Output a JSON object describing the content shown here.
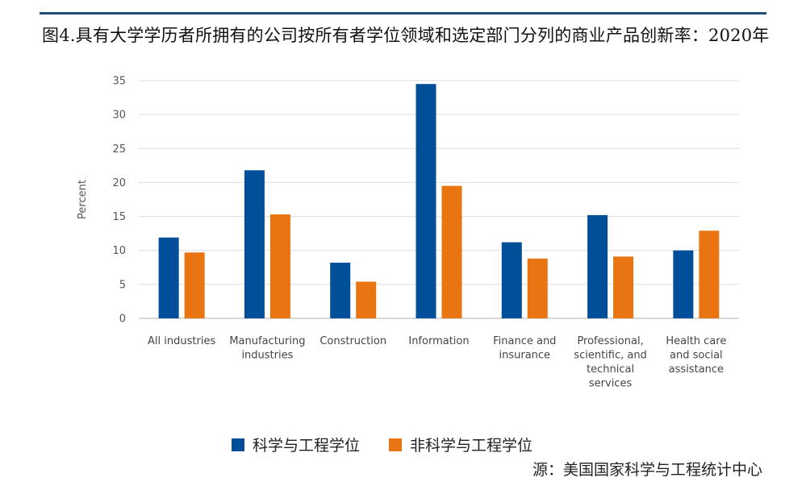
{
  "title": "图4.具有大学学历者所拥有的公司按所有者学位领域和选定部门分列的商业产品创新率：2020年",
  "source": "源：美国国家科学与工程统计中心",
  "colors": {
    "se": "#004f98",
    "non_se": "#e87511",
    "grid": "#dcdcdc",
    "axis": "#cccccc"
  },
  "chart_data": {
    "type": "bar",
    "ylabel": "Percent",
    "ylim": [
      0,
      35
    ],
    "yticks": [
      0,
      5,
      10,
      15,
      20,
      25,
      30,
      35
    ],
    "grid": true,
    "legend_position": "bottom",
    "categories": [
      [
        "All industries"
      ],
      [
        "Manufacturing",
        "industries"
      ],
      [
        "Construction"
      ],
      [
        "Information"
      ],
      [
        "Finance and",
        "insurance"
      ],
      [
        "Professional,",
        "scientific, and",
        "technical",
        "services"
      ],
      [
        "Health care",
        "and social",
        "assistance"
      ]
    ],
    "series": [
      {
        "name": "科学与工程学位",
        "color": "#004f98",
        "values": [
          11.9,
          21.8,
          8.2,
          34.5,
          11.2,
          15.2,
          10.0
        ]
      },
      {
        "name": "非科学与工程学位",
        "color": "#e87511",
        "values": [
          9.7,
          15.3,
          5.4,
          19.5,
          8.8,
          9.1,
          12.9
        ]
      }
    ]
  }
}
